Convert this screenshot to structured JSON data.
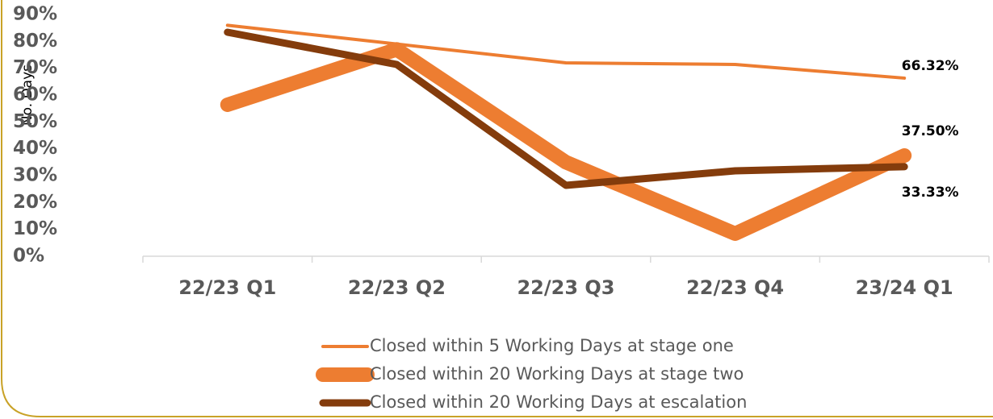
{
  "chart_data": {
    "type": "line",
    "y_label": "No. Days",
    "categories": [
      "22/23 Q1",
      "22/23 Q2",
      "22/23 Q3",
      "22/23 Q4",
      "23/24 Q1"
    ],
    "series": [
      {
        "name": "Closed within 5 Working Days at stage one",
        "color": "#ed7d31",
        "values": [
          86,
          79,
          72,
          71.4,
          66.32
        ],
        "value_labels": [
          null,
          null,
          null,
          null,
          "66.32%"
        ]
      },
      {
        "name": "Closed within 20 Working Days at stage two",
        "color": "#ed7d31",
        "values": [
          56.4,
          77,
          35,
          8.4,
          37.5
        ],
        "value_labels": [
          null,
          null,
          null,
          null,
          "37.50%"
        ]
      },
      {
        "name": "Closed within 20 Working Days at escalation",
        "color": "#843c0c",
        "values": [
          83.4,
          71.4,
          26.4,
          31.8,
          33.33
        ],
        "value_labels": [
          null,
          null,
          null,
          null,
          "33.33%"
        ]
      }
    ],
    "ylim": [
      0,
      90
    ],
    "yticks": [
      {
        "value": 0,
        "label": "0%"
      },
      {
        "value": 10,
        "label": "10%"
      },
      {
        "value": 20,
        "label": "20%"
      },
      {
        "value": 30,
        "label": "30%"
      },
      {
        "value": 40,
        "label": "40%"
      },
      {
        "value": 50,
        "label": "50%"
      },
      {
        "value": 60,
        "label": "60%"
      },
      {
        "value": 70,
        "label": "70%"
      },
      {
        "value": 80,
        "label": "80%"
      },
      {
        "value": 90,
        "label": "90%"
      }
    ],
    "grid": false
  }
}
